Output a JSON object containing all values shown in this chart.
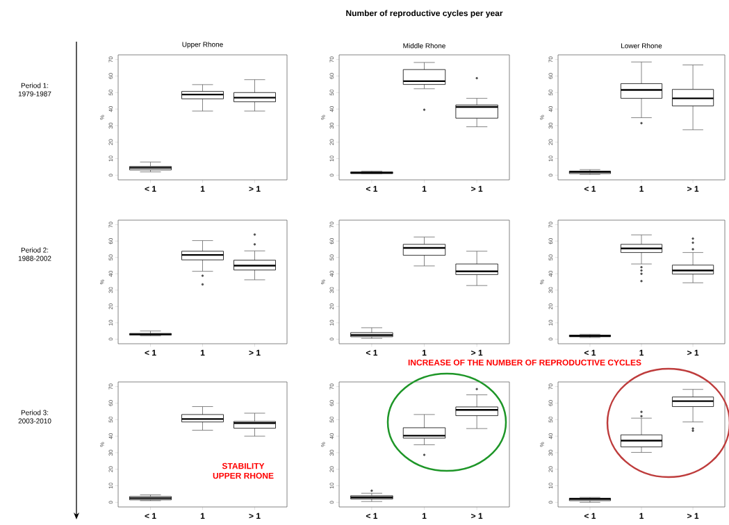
{
  "chart_data": [
    {
      "type": "box",
      "title": "Upper Rhone",
      "ylabel": "%",
      "categories": [
        "< 1",
        "1",
        "> 1"
      ],
      "ylim": [
        -2.8,
        72.8
      ],
      "yticks": [
        0,
        10,
        20,
        30,
        40,
        50,
        60,
        70
      ],
      "annotations": [
        "Period 1: 1979-1987"
      ],
      "boxes": [
        {
          "low": 2,
          "q1": 3.2,
          "median": 4.5,
          "q3": 5.3,
          "high": 8
        },
        {
          "low": 38.8,
          "q1": 46.2,
          "median": 48.8,
          "q3": 50.7,
          "high": 54.8
        },
        {
          "low": 38.8,
          "q1": 44.4,
          "median": 46.9,
          "q3": 50,
          "high": 57.8
        }
      ]
    },
    {
      "type": "box",
      "title": "Middle Rhone",
      "ylabel": "%",
      "categories": [
        "< 1",
        "1",
        "> 1"
      ],
      "ylim": [
        -2.8,
        72.8
      ],
      "yticks": [
        0,
        10,
        20,
        30,
        40,
        50,
        60,
        70
      ],
      "annotations": [
        "Number of reproductive cycles  per year"
      ],
      "boxes": [
        {
          "low": 1,
          "q1": 1,
          "median": 1.5,
          "q3": 2,
          "high": 2.5
        },
        {
          "low": 52.3,
          "q1": 54.9,
          "median": 56.9,
          "q3": 63.9,
          "high": 68.2,
          "outliers": [
            39.6
          ]
        },
        {
          "low": 29.3,
          "q1": 34.5,
          "median": 41.3,
          "q3": 42.5,
          "high": 46.5,
          "outliers": [
            58.7
          ]
        }
      ]
    },
    {
      "type": "box",
      "title": "Lower Rhone",
      "ylabel": "%",
      "categories": [
        "< 1",
        "1",
        "> 1"
      ],
      "ylim": [
        -2.8,
        72.8
      ],
      "yticks": [
        0,
        10,
        20,
        30,
        40,
        50,
        60,
        70
      ],
      "boxes": [
        {
          "low": 0.5,
          "q1": 1,
          "median": 2,
          "q3": 2.5,
          "high": 3.4
        },
        {
          "low": 34.8,
          "q1": 46.5,
          "median": 51.6,
          "q3": 55.4,
          "high": 68.5,
          "outliers": [
            31.5
          ]
        },
        {
          "low": 27.5,
          "q1": 41.9,
          "median": 46.5,
          "q3": 51.9,
          "high": 66.7
        }
      ]
    },
    {
      "type": "box",
      "ylabel": "%",
      "categories": [
        "< 1",
        "1",
        "> 1"
      ],
      "ylim": [
        -2.8,
        72.8
      ],
      "yticks": [
        0,
        10,
        20,
        30,
        40,
        50,
        60,
        70
      ],
      "annotations": [
        "Period 2: 1988-2002"
      ],
      "boxes": [
        {
          "low": 2,
          "q1": 2.5,
          "median": 3,
          "q3": 3.5,
          "high": 5
        },
        {
          "low": 41.5,
          "q1": 48.5,
          "median": 51.5,
          "q3": 53.8,
          "high": 60.3,
          "outliers": [
            38.8,
            33.5
          ]
        },
        {
          "low": 36.3,
          "q1": 42.3,
          "median": 45,
          "q3": 48.3,
          "high": 54,
          "outliers": [
            58,
            64
          ]
        }
      ]
    },
    {
      "type": "box",
      "ylabel": "%",
      "categories": [
        "< 1",
        "1",
        "> 1"
      ],
      "ylim": [
        -2.8,
        72.8
      ],
      "yticks": [
        0,
        10,
        20,
        30,
        40,
        50,
        60,
        70
      ],
      "boxes": [
        {
          "low": 0.5,
          "q1": 1.5,
          "median": 2.5,
          "q3": 4,
          "high": 7
        },
        {
          "low": 44.8,
          "q1": 51.3,
          "median": 55.8,
          "q3": 58,
          "high": 62.5
        },
        {
          "low": 32.8,
          "q1": 39.5,
          "median": 41.5,
          "q3": 46,
          "high": 53.8
        }
      ]
    },
    {
      "type": "box",
      "ylabel": "%",
      "categories": [
        "< 1",
        "1",
        "> 1"
      ],
      "ylim": [
        -2.8,
        72.8
      ],
      "yticks": [
        0,
        10,
        20,
        30,
        40,
        50,
        60,
        70
      ],
      "boxes": [
        {
          "low": 1,
          "q1": 1.5,
          "median": 2,
          "q3": 2.5,
          "high": 3
        },
        {
          "low": 46,
          "q1": 53,
          "median": 55.5,
          "q3": 58,
          "high": 63.8,
          "outliers": [
            44,
            42,
            40,
            35.5
          ]
        },
        {
          "low": 34.5,
          "q1": 39.8,
          "median": 42,
          "q3": 45.3,
          "high": 53,
          "outliers": [
            55,
            59,
            61.5
          ]
        }
      ]
    },
    {
      "type": "box",
      "ylabel": "%",
      "categories": [
        "< 1",
        "1",
        "> 1"
      ],
      "ylim": [
        -2.8,
        72.8
      ],
      "yticks": [
        0,
        10,
        20,
        30,
        40,
        50,
        60,
        70
      ],
      "annotations": [
        "Period 3: 2003-2010",
        "STABILITY UPPER RHONE"
      ],
      "boxes": [
        {
          "low": 1,
          "q1": 1.5,
          "median": 2.5,
          "q3": 3.5,
          "high": 4.5
        },
        {
          "low": 43.6,
          "q1": 48.6,
          "median": 50.4,
          "q3": 53.1,
          "high": 57.9
        },
        {
          "low": 40,
          "q1": 44.8,
          "median": 47.9,
          "q3": 48.9,
          "high": 53.9
        }
      ]
    },
    {
      "type": "box",
      "ylabel": "%",
      "categories": [
        "< 1",
        "1",
        "> 1"
      ],
      "ylim": [
        -2.8,
        72.8
      ],
      "yticks": [
        0,
        10,
        20,
        30,
        40,
        50,
        60,
        70
      ],
      "annotations": [
        "INCREASE OF THE NUMBER OF REPRODUCTIVE CYCLES"
      ],
      "boxes": [
        {
          "low": 0.5,
          "q1": 2,
          "median": 3,
          "q3": 4,
          "high": 5.5,
          "outliers": [
            7
          ]
        },
        {
          "low": 34.8,
          "q1": 38.8,
          "median": 40.3,
          "q3": 45.1,
          "high": 53.1,
          "outliers": [
            28.7
          ]
        },
        {
          "low": 44.6,
          "q1": 52.4,
          "median": 55.9,
          "q3": 57.7,
          "high": 65,
          "outliers": [
            68.5
          ]
        }
      ]
    },
    {
      "type": "box",
      "ylabel": "%",
      "categories": [
        "< 1",
        "1",
        "> 1"
      ],
      "ylim": [
        -2.8,
        72.8
      ],
      "yticks": [
        0,
        10,
        20,
        30,
        40,
        50,
        60,
        70
      ],
      "boxes": [
        {
          "low": 0,
          "q1": 1,
          "median": 2,
          "q3": 2.5,
          "high": 3
        },
        {
          "low": 30.2,
          "q1": 33.5,
          "median": 37.3,
          "q3": 40.8,
          "high": 50.9,
          "outliers": [
            52.1,
            54.7
          ]
        },
        {
          "low": 48.6,
          "q1": 57.9,
          "median": 61.2,
          "q3": 63.7,
          "high": 68.3,
          "outliers": [
            44.6,
            43.3
          ]
        }
      ]
    }
  ]
}
